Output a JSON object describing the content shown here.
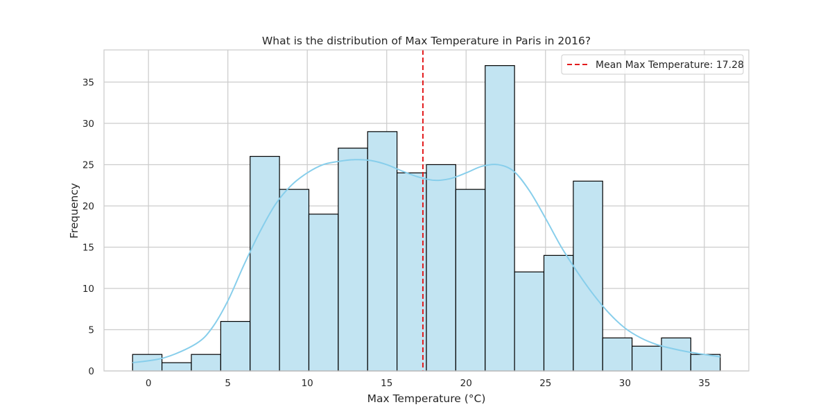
{
  "chart_data": {
    "type": "bar",
    "title": "What is the distribution of Max Temperature in Paris in 2016?",
    "xlabel": "Max Temperature (°C)",
    "ylabel": "Frequency",
    "xlim": [
      -2.8,
      37.8
    ],
    "ylim": [
      0,
      38.9
    ],
    "xticks": [
      0,
      5,
      10,
      15,
      20,
      25,
      30,
      35
    ],
    "yticks": [
      0,
      5,
      10,
      15,
      20,
      25,
      30,
      35
    ],
    "bins": {
      "edges": [
        -1.0,
        0.85,
        2.7,
        4.55,
        6.4,
        8.25,
        10.1,
        11.95,
        13.8,
        15.65,
        17.5,
        19.35,
        21.2,
        23.05,
        24.9,
        26.75,
        28.6,
        30.45,
        32.3,
        34.15,
        36.0
      ],
      "counts": [
        2,
        1,
        2,
        6,
        26,
        22,
        19,
        27,
        29,
        24,
        25,
        22,
        37,
        12,
        14,
        23,
        4,
        3,
        4,
        2
      ]
    },
    "kde": {
      "x": [
        -1,
        1,
        3,
        4,
        5,
        6,
        7,
        8,
        9,
        10,
        11,
        12,
        13,
        14,
        15,
        16,
        17,
        18,
        19,
        20,
        21,
        22,
        23,
        24,
        25,
        26,
        27,
        28,
        29,
        30,
        31,
        32,
        33,
        34,
        35,
        36
      ],
      "y": [
        1.0,
        1.6,
        3.3,
        5.2,
        8.5,
        12.8,
        16.8,
        20.2,
        22.5,
        24.0,
        25.0,
        25.4,
        25.6,
        25.5,
        25.0,
        24.2,
        23.5,
        23.1,
        23.3,
        24.0,
        24.8,
        25.0,
        24.2,
        21.8,
        18.5,
        15.0,
        12.0,
        9.3,
        7.0,
        5.2,
        4.0,
        3.2,
        2.7,
        2.3,
        2.0,
        1.7
      ]
    },
    "mean_line": {
      "x": 17.28,
      "label": "Mean Max Temperature: 17.28",
      "color": "#e31a1c"
    },
    "bar_fill": "#c2e4f2",
    "bar_edge": "#000000",
    "kde_color": "#87ceeb",
    "grid": true,
    "legend_position": "top-right"
  }
}
